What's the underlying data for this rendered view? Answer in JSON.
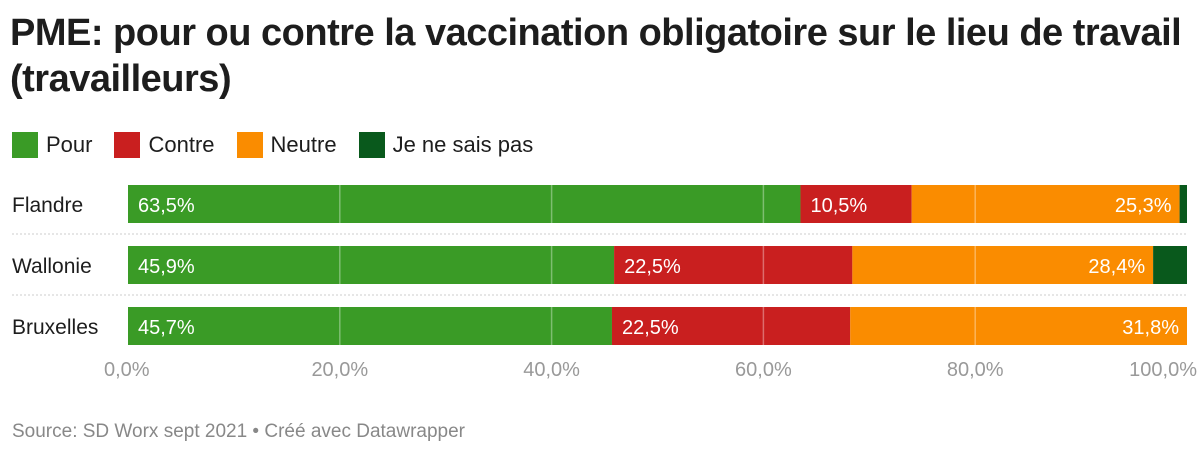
{
  "title": "PME: pour ou contre la vaccination obligatoire sur le lieu de travail (travailleurs)",
  "source": "Source: SD Worx sept 2021 • Créé avec Datawrapper",
  "chart_data": {
    "type": "bar",
    "stacked": true,
    "orientation": "horizontal",
    "title": "PME: pour ou contre la vaccination obligatoire sur le lieu de travail (travailleurs)",
    "categories": [
      "Flandre",
      "Wallonie",
      "Bruxelles"
    ],
    "series": [
      {
        "name": "Pour",
        "color": "#3a9b26",
        "values": [
          63.5,
          45.9,
          45.7
        ]
      },
      {
        "name": "Contre",
        "color": "#c91f1f",
        "values": [
          10.5,
          22.5,
          22.5
        ]
      },
      {
        "name": "Neutre",
        "color": "#fa8c00",
        "values": [
          25.3,
          28.4,
          31.8
        ]
      },
      {
        "name": "Je ne sais pas",
        "color": "#09591c",
        "values": [
          0.7,
          3.2,
          0.0
        ]
      }
    ],
    "labels": [
      [
        "63,5%",
        "10,5%",
        "25,3%",
        ""
      ],
      [
        "45,9%",
        "22,5%",
        "28,4%",
        ""
      ],
      [
        "45,7%",
        "22,5%",
        "31,8%",
        ""
      ]
    ],
    "xticks": [
      "0,0%",
      "20,0%",
      "40,0%",
      "60,0%",
      "80,0%",
      "100,0%"
    ],
    "xlim": [
      0,
      100
    ],
    "legend": "top-left"
  }
}
